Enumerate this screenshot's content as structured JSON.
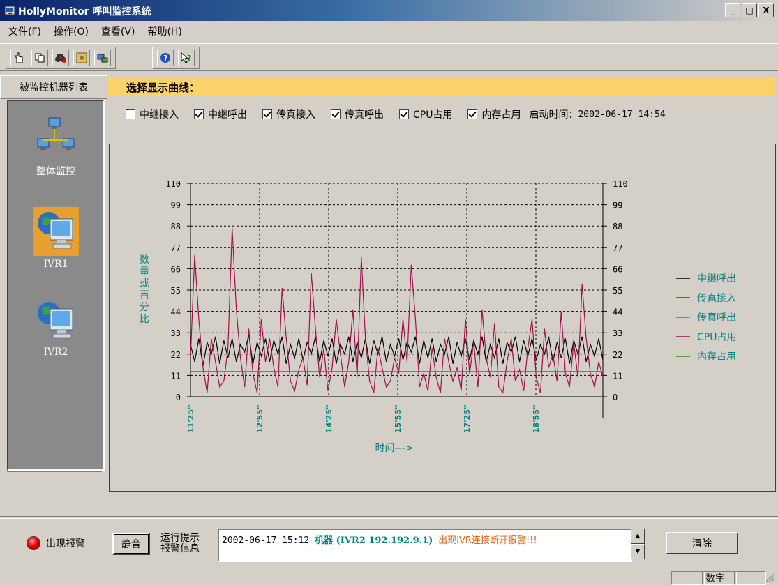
{
  "window": {
    "title": "HollyMonitor 呼叫监控系统",
    "controls": [
      "_",
      "□",
      "X"
    ]
  },
  "menu": [
    "文件(F)",
    "操作(O)",
    "查看(V)",
    "帮助(H)"
  ],
  "toolbar": {
    "icons": [
      "hand-pointer-icon",
      "copy-icon",
      "binoculars-icon",
      "settings-icon",
      "network-icon",
      "help-icon",
      "context-help-icon"
    ]
  },
  "sidebar": {
    "header": "被监控机器列表",
    "items": [
      {
        "label": "整体监控",
        "icon": "network-icon",
        "selected": false
      },
      {
        "label": "IVR1",
        "icon": "monitor-icon",
        "selected": true
      },
      {
        "label": "IVR2",
        "icon": "monitor-icon",
        "selected": false
      }
    ]
  },
  "panel": {
    "header": "选择显示曲线：",
    "checkboxes": [
      {
        "label": "中继接入",
        "checked": false
      },
      {
        "label": "中继呼出",
        "checked": true
      },
      {
        "label": "传真接入",
        "checked": true
      },
      {
        "label": "传真呼出",
        "checked": true
      },
      {
        "label": "CPU占用",
        "checked": true
      },
      {
        "label": "内存占用",
        "checked": true
      }
    ],
    "start_time_label": "启动时间：",
    "start_time": "2002-06-17 14:54"
  },
  "chart_data": {
    "type": "line",
    "ylabel": "数量或百分比",
    "xlabel": "时间--->",
    "ylim": [
      0,
      110
    ],
    "yticks": [
      0,
      11,
      22,
      33,
      44,
      55,
      66,
      77,
      88,
      99,
      110
    ],
    "xtick_labels": [
      "11'25''",
      "12'55''",
      "14'25''",
      "15'55''",
      "17'25''",
      "18'55''"
    ],
    "grid": true,
    "legend_position": "right",
    "series": [
      {
        "name": "中继呼出",
        "color": "#000000",
        "values": [
          27,
          18,
          30,
          16,
          28,
          22,
          31,
          17,
          29,
          20,
          30,
          18,
          27,
          23,
          32,
          17,
          28,
          21,
          30,
          18,
          29,
          22,
          31,
          17,
          27,
          20,
          30,
          19,
          28,
          22,
          31,
          18,
          29,
          21,
          30,
          17,
          27,
          22,
          31,
          18,
          28,
          20,
          30,
          17,
          29,
          22,
          31,
          18,
          27,
          21,
          30,
          19,
          28,
          23,
          31,
          17,
          29,
          20,
          30,
          18,
          27,
          22,
          31,
          17,
          28,
          21,
          30,
          19,
          29,
          22,
          31,
          18,
          27,
          20,
          30,
          17,
          28,
          23,
          31,
          18,
          29,
          21,
          30,
          19,
          27,
          22,
          31,
          18,
          28,
          20,
          30,
          17,
          29,
          22,
          31,
          18,
          27,
          21,
          30,
          19
        ]
      },
      {
        "name": "传真接入",
        "color": "#2030d0",
        "values": []
      },
      {
        "name": "传真呼出",
        "color": "#d020d0",
        "values": []
      },
      {
        "name": "CPU占用",
        "color": "#a0104a",
        "values": [
          20,
          73,
          40,
          15,
          2,
          30,
          18,
          5,
          8,
          25,
          87,
          45,
          20,
          5,
          35,
          12,
          2,
          40,
          18,
          30,
          15,
          5,
          56,
          30,
          8,
          3,
          14,
          20,
          6,
          64,
          35,
          10,
          25,
          3,
          15,
          40,
          22,
          5,
          18,
          45,
          10,
          72,
          30,
          8,
          2,
          25,
          15,
          5,
          8,
          20,
          12,
          40,
          18,
          68,
          40,
          5,
          12,
          3,
          25,
          10,
          2,
          30,
          18,
          8,
          15,
          3,
          40,
          12,
          28,
          5,
          45,
          20,
          10,
          38,
          5,
          2,
          18,
          30,
          8,
          14,
          3,
          25,
          40,
          10,
          2,
          35,
          15,
          22,
          8,
          44,
          12,
          5,
          28,
          10,
          58,
          30,
          12,
          5,
          18,
          10
        ]
      },
      {
        "name": "内存占用",
        "color": "#209020",
        "values": [
          13,
          13,
          13,
          13,
          13,
          13,
          13,
          13,
          13,
          13,
          13,
          13,
          13,
          13,
          13,
          13,
          13,
          13,
          13,
          13,
          13,
          13,
          13,
          13,
          13,
          13,
          13,
          13,
          13,
          13,
          13,
          13,
          13,
          13,
          13,
          13,
          13,
          13,
          13,
          13,
          13,
          13,
          13,
          13,
          13,
          13,
          13,
          13,
          13,
          13,
          13,
          13,
          13,
          13,
          13,
          13,
          13,
          13,
          13,
          13,
          13,
          13,
          13,
          13,
          13,
          13,
          13,
          13,
          13,
          13,
          13,
          13,
          13,
          13,
          13,
          13,
          13,
          13,
          13,
          13,
          13,
          13,
          13,
          13,
          13,
          13,
          13,
          13,
          13,
          13,
          13,
          13,
          13,
          13,
          13,
          13,
          13,
          13,
          13,
          13
        ]
      }
    ]
  },
  "bottom": {
    "alarm_label": "出现报警",
    "mute_label": "静音",
    "run_info_line1": "运行提示",
    "run_info_line2": "报警信息",
    "message": {
      "time": "2002-06-17 15:12",
      "machine": "机器 (IVR2 192.192.9.1)",
      "text": "出现IVR连接断开报警!!!",
      "machine_color": "#008080",
      "text_color": "#e06010"
    },
    "clear_label": "清除"
  },
  "statusbar": {
    "num_label": "数字"
  }
}
